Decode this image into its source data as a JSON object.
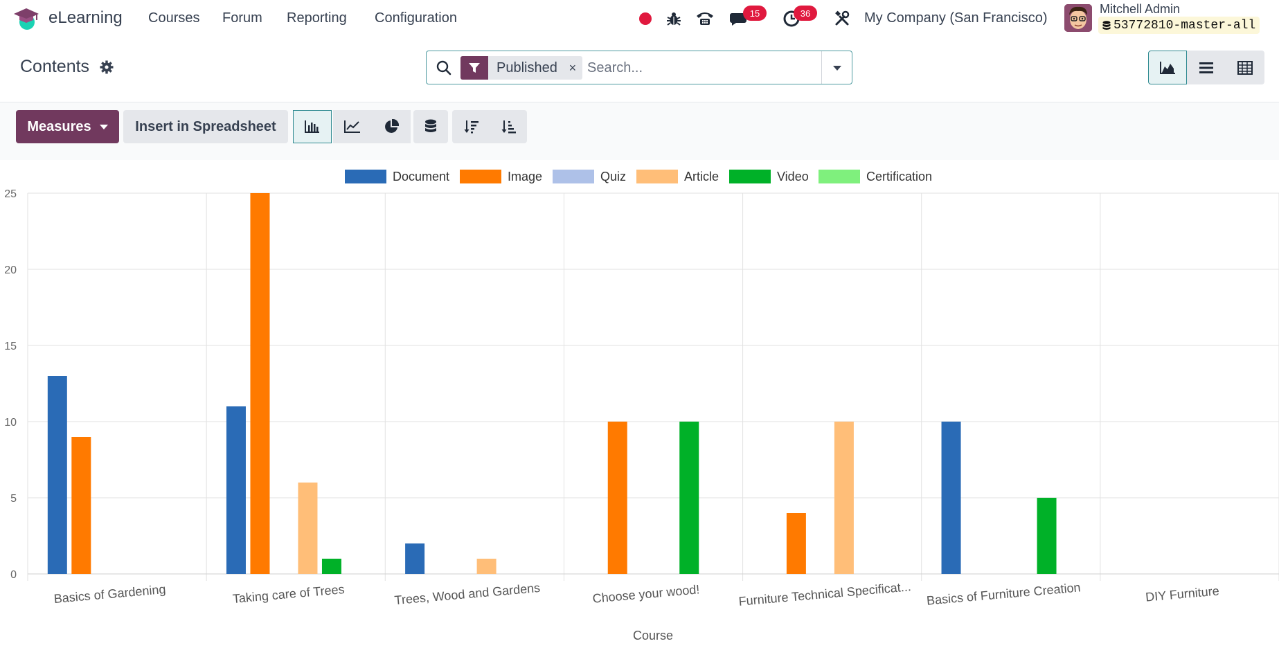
{
  "navbar": {
    "app_name": "eLearning",
    "menu": [
      "Courses",
      "Forum",
      "Reporting",
      "Configuration"
    ],
    "chat_count": "15",
    "activity_count": "36",
    "company": "My Company (San Francisco)",
    "user_name": "Mitchell Admin",
    "database": "53772810-master-all"
  },
  "control_panel": {
    "title": "Contents",
    "facet_label": "Published",
    "facet_remove": "×",
    "search_placeholder": "Search..."
  },
  "toolbar": {
    "measures_label": "Measures",
    "spreadsheet_label": "Insert in Spreadsheet"
  },
  "colors": {
    "brand": "#71395e",
    "accent": "#2f8a91",
    "badge": "#e0193e"
  },
  "chart_data": {
    "type": "bar",
    "xlabel": "Course",
    "ylabel": "",
    "ylim": [
      0,
      25
    ],
    "yticks": [
      0,
      5,
      10,
      15,
      20,
      25
    ],
    "grid": true,
    "legend_position": "top",
    "categories": [
      "Basics of Gardening",
      "Taking care of Trees",
      "Trees, Wood and Gardens",
      "Choose your wood!",
      "Furniture Technical Specificat...",
      "Basics of Furniture Creation",
      "DIY Furniture"
    ],
    "series": [
      {
        "name": "Document",
        "color": "#2a6bb6",
        "values": [
          13,
          11,
          2,
          0,
          0,
          10,
          0
        ]
      },
      {
        "name": "Image",
        "color": "#ff7a00",
        "values": [
          9,
          25,
          0,
          10,
          4,
          0,
          0
        ]
      },
      {
        "name": "Quiz",
        "color": "#aec1e8",
        "values": [
          0,
          0,
          0,
          0,
          0,
          0,
          0
        ]
      },
      {
        "name": "Article",
        "color": "#ffbe78",
        "values": [
          0,
          6,
          1,
          0,
          10,
          0,
          0
        ]
      },
      {
        "name": "Video",
        "color": "#00b128",
        "values": [
          0,
          1,
          0,
          10,
          0,
          5,
          0
        ]
      },
      {
        "name": "Certification",
        "color": "#7ff07d",
        "values": [
          0,
          0,
          0,
          0,
          0,
          0,
          0
        ]
      }
    ]
  }
}
